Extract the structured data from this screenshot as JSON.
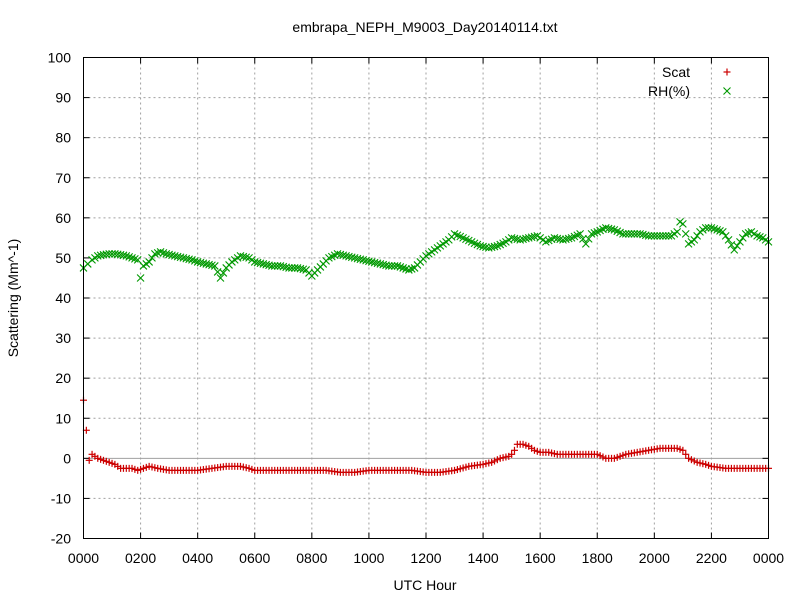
{
  "chart_data": {
    "type": "scatter",
    "title": "embrapa_NEPH_M9003_Day20140114.txt",
    "xlabel": "UTC Hour",
    "ylabel": "Scattering (Mm^-1)",
    "xlim": [
      0,
      24
    ],
    "ylim": [
      -20,
      100
    ],
    "x_ticks": [
      {
        "v": 0,
        "label": "0000"
      },
      {
        "v": 2,
        "label": "0200"
      },
      {
        "v": 4,
        "label": "0400"
      },
      {
        "v": 6,
        "label": "0600"
      },
      {
        "v": 8,
        "label": "0800"
      },
      {
        "v": 10,
        "label": "1000"
      },
      {
        "v": 12,
        "label": "1200"
      },
      {
        "v": 14,
        "label": "1400"
      },
      {
        "v": 16,
        "label": "1600"
      },
      {
        "v": 18,
        "label": "1800"
      },
      {
        "v": 20,
        "label": "2000"
      },
      {
        "v": 22,
        "label": "2200"
      },
      {
        "v": 24,
        "label": "0000"
      }
    ],
    "y_ticks": [
      -20,
      -10,
      0,
      10,
      20,
      30,
      40,
      50,
      60,
      70,
      80,
      90,
      100
    ],
    "zero_line": true,
    "grid": true,
    "legend_position": "top-right",
    "series": [
      {
        "name": "Scat",
        "marker": "plus",
        "color": "#cc0000",
        "x": [
          0,
          0.2,
          0.3,
          0.5,
          0.7,
          0.9,
          1.1,
          1.3,
          1.5,
          1.7,
          1.9,
          2.1,
          2.3,
          2.6,
          3.0,
          3.5,
          4.0,
          4.5,
          5.0,
          5.3,
          5.5,
          5.8,
          6.0,
          6.5,
          7.0,
          7.5,
          8.0,
          8.5,
          9.0,
          9.5,
          10.0,
          10.5,
          11.0,
          11.5,
          12.0,
          12.5,
          13.0,
          13.5,
          14.0,
          14.3,
          14.6,
          14.9,
          15.0,
          15.1,
          15.2,
          15.4,
          15.6,
          15.8,
          16.0,
          16.3,
          16.6,
          17.0,
          17.4,
          17.8,
          18.0,
          18.3,
          18.6,
          19.0,
          19.4,
          19.8,
          20.2,
          20.6,
          20.8,
          21.0,
          21.2,
          21.5,
          21.8,
          22.0,
          22.5,
          23.0,
          23.5,
          24.0
        ],
        "y": [
          14.5,
          -0.5,
          1,
          0,
          -0.5,
          -1,
          -1.5,
          -2.5,
          -2.5,
          -2.5,
          -3,
          -2.5,
          -2,
          -2.5,
          -3,
          -3,
          -3,
          -2.5,
          -2,
          -2,
          -2,
          -2.5,
          -3,
          -3,
          -3,
          -3,
          -3,
          -3,
          -3.5,
          -3.5,
          -3,
          -3,
          -3,
          -3,
          -3.5,
          -3.5,
          -3,
          -2,
          -1.5,
          -1,
          0,
          0.5,
          1,
          2,
          3.5,
          3.5,
          3,
          2,
          1.5,
          1.5,
          1,
          1,
          1,
          1,
          1,
          0,
          0,
          1,
          1.5,
          2,
          2.5,
          2.5,
          2.5,
          2,
          0,
          -1,
          -1.5,
          -2,
          -2.5,
          -2.5,
          -2.5,
          -2.5
        ]
      },
      {
        "name": "RH(%)",
        "marker": "cross",
        "color": "#009900",
        "x": [
          0,
          0.15,
          0.3,
          0.5,
          0.7,
          0.9,
          1.1,
          1.3,
          1.5,
          1.7,
          1.9,
          2.0,
          2.1,
          2.3,
          2.5,
          2.7,
          2.9,
          3.2,
          3.5,
          3.8,
          4.0,
          4.3,
          4.6,
          4.8,
          5.0,
          5.2,
          5.5,
          5.8,
          6.0,
          6.3,
          6.6,
          6.9,
          7.2,
          7.5,
          7.8,
          8.0,
          8.2,
          8.4,
          8.6,
          8.9,
          9.2,
          9.5,
          9.8,
          10.1,
          10.4,
          10.7,
          11.0,
          11.2,
          11.4,
          11.6,
          11.8,
          12.0,
          12.2,
          12.4,
          12.6,
          12.8,
          13.0,
          13.3,
          13.6,
          13.9,
          14.2,
          14.5,
          14.8,
          15.0,
          15.3,
          15.6,
          15.9,
          16.2,
          16.5,
          16.8,
          17.1,
          17.4,
          17.6,
          17.8,
          18.0,
          18.3,
          18.6,
          18.9,
          19.2,
          19.5,
          19.8,
          20.1,
          20.4,
          20.6,
          20.8,
          20.9,
          21.0,
          21.2,
          21.4,
          21.6,
          21.8,
          22.0,
          22.2,
          22.4,
          22.6,
          22.8,
          23.0,
          23.2,
          23.4,
          23.6,
          23.8,
          24.0
        ],
        "y": [
          47.5,
          48.5,
          49.5,
          50.5,
          50.8,
          51,
          51,
          50.8,
          50.5,
          50,
          49.5,
          45,
          48,
          49,
          51,
          51.5,
          51,
          50.5,
          50,
          49.5,
          49,
          48.5,
          48,
          45,
          47.5,
          49,
          50.5,
          50,
          49,
          48.5,
          48,
          48,
          47.5,
          47.5,
          47,
          45.5,
          47,
          48.5,
          50,
          51,
          50.5,
          50,
          49.5,
          49,
          48.5,
          48,
          48,
          47.5,
          47,
          47.5,
          49,
          50.5,
          51.5,
          52.5,
          53.5,
          54.5,
          56,
          55,
          54,
          53,
          52.5,
          53,
          54,
          55,
          54.5,
          55,
          55.5,
          54,
          55,
          54.5,
          55,
          56,
          53.5,
          56,
          56.5,
          57.5,
          57,
          56,
          56,
          56,
          55.5,
          55.5,
          55.5,
          55.5,
          56.5,
          59,
          58.5,
          53.5,
          54.5,
          56.5,
          57.5,
          57.5,
          57,
          56.5,
          54.5,
          52,
          54,
          56,
          56.5,
          55.5,
          55,
          54
        ]
      }
    ]
  }
}
